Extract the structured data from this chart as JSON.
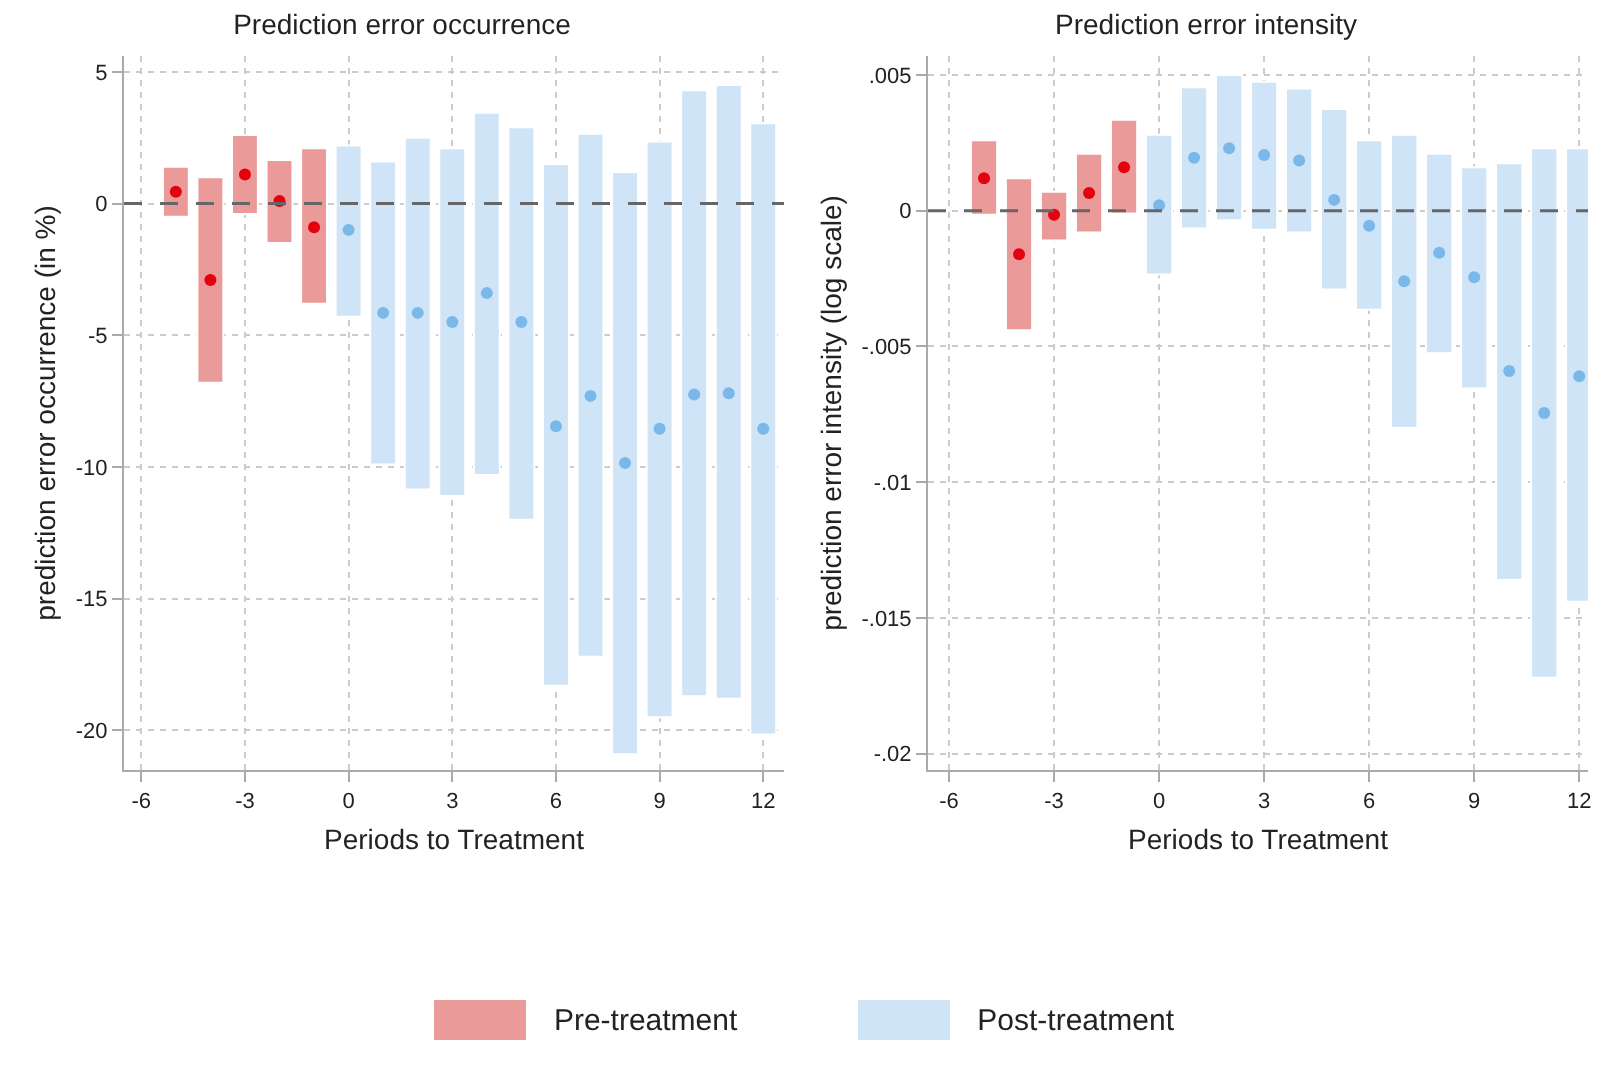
{
  "chart_data": [
    {
      "type": "bar",
      "title": "Prediction error occurrence",
      "xlabel": "Periods to Treatment",
      "ylabel": "prediction error occurrence (in %)",
      "xlim": [
        -6.5,
        12.6
      ],
      "xticks": [
        -6,
        -3,
        0,
        3,
        6,
        9,
        12
      ],
      "ylim": [
        -21.5,
        5.6
      ],
      "yticks": [
        -20,
        -15,
        -10,
        -5,
        0,
        5
      ],
      "grid": true,
      "legend": "bottom",
      "ref_lines": [
        {
          "axis": "y",
          "value": 0,
          "color": "#666666",
          "line_style": "dashed"
        }
      ],
      "series": [
        {
          "name": "Pre-treatment",
          "color": "#eb9a9a",
          "x": [
            -5,
            -4,
            -3,
            -2,
            -1
          ],
          "base": [
            -0.5,
            -6.8,
            -0.4,
            -1.5,
            -3.8
          ],
          "values": [
            1.9,
            7.8,
            3.0,
            3.15,
            5.9
          ]
        },
        {
          "name": "Post-treatment",
          "color": "#cfe4f6",
          "x": [
            0,
            1,
            2,
            3,
            4,
            5,
            6,
            7,
            8,
            9,
            10,
            11,
            12
          ],
          "base": [
            -4.3,
            -9.9,
            -10.85,
            -11.1,
            -10.3,
            -12.0,
            -18.3,
            -17.2,
            -20.9,
            -19.5,
            -18.7,
            -18.8,
            -20.15
          ],
          "values": [
            6.5,
            11.5,
            13.35,
            13.2,
            13.75,
            14.9,
            19.8,
            19.85,
            22.1,
            21.85,
            23.0,
            23.3,
            23.2
          ]
        },
        {
          "type": "scatter",
          "marker": "circle",
          "color": "#e3000f",
          "x": [
            -5,
            -4,
            -3,
            -2,
            -1
          ],
          "values": [
            0.45,
            -2.9,
            1.1,
            0.1,
            -0.9
          ]
        },
        {
          "type": "scatter",
          "marker": "circle",
          "color": "#79b8e8",
          "x": [
            0,
            1,
            2,
            3,
            4,
            5,
            6,
            7,
            8,
            9,
            10,
            11,
            12
          ],
          "values": [
            -1.0,
            -4.15,
            -4.15,
            -4.5,
            -3.4,
            -4.5,
            -8.45,
            -7.3,
            -9.85,
            -8.55,
            -7.25,
            -7.2,
            -8.55
          ]
        }
      ]
    },
    {
      "type": "bar",
      "title": "Prediction error intensity",
      "xlabel": "Periods to Treatment",
      "ylabel": "prediction error intensity (log scale)",
      "xlim": [
        -6.6,
        12.25
      ],
      "xticks": [
        -6,
        -3,
        0,
        3,
        6,
        9,
        12
      ],
      "ylim": [
        -0.0206,
        0.0057
      ],
      "yticks": [
        {
          "value": -0.02,
          "label": "-.02"
        },
        {
          "value": -0.015,
          "label": "-.015"
        },
        {
          "value": -0.01,
          "label": "-.01"
        },
        {
          "value": -0.005,
          "label": "-.005"
        },
        0,
        {
          "value": 0.005,
          "label": ".005"
        }
      ],
      "grid": true,
      "ref_lines": [
        {
          "axis": "y",
          "value": 0,
          "color": "#666666",
          "line_style": "dashed"
        }
      ],
      "series": [
        {
          "color": "#eb9a9a",
          "x": [
            -5,
            -4,
            -3,
            -2,
            -1
          ],
          "base": [
            -0.00015,
            -0.0044,
            -0.0011,
            -0.0008,
            -0.0001
          ],
          "values": [
            0.00275,
            0.0056,
            0.0018,
            0.0029,
            0.00345
          ]
        },
        {
          "color": "#cfe4f6",
          "x": [
            0,
            1,
            2,
            3,
            4,
            5,
            6,
            7,
            8,
            9,
            10,
            11,
            12
          ],
          "base": [
            -0.00235,
            -0.00065,
            -0.00035,
            -0.0007,
            -0.0008,
            -0.0029,
            -0.00365,
            -0.008,
            -0.00525,
            -0.00655,
            -0.0136,
            -0.0172,
            -0.0144
          ],
          "values": [
            0.00515,
            0.0052,
            0.00535,
            0.00545,
            0.0053,
            0.00665,
            0.00625,
            0.0108,
            0.00735,
            0.00815,
            0.01535,
            0.0195,
            0.0167
          ]
        },
        {
          "type": "scatter",
          "marker": "circle",
          "color": "#e3000f",
          "x": [
            -5,
            -4,
            -3,
            -2,
            -1
          ],
          "values": [
            0.0012,
            -0.0016,
            -0.00015,
            0.00065,
            0.0016
          ]
        },
        {
          "type": "scatter",
          "marker": "circle",
          "color": "#79b8e8",
          "x": [
            0,
            1,
            2,
            3,
            4,
            5,
            6,
            7,
            8,
            9,
            10,
            11,
            12
          ],
          "values": [
            0.0002,
            0.00195,
            0.0023,
            0.00205,
            0.00185,
            0.0004,
            -0.00055,
            -0.0026,
            -0.00155,
            -0.00245,
            -0.0059,
            -0.00745,
            -0.0061
          ]
        }
      ]
    }
  ]
}
